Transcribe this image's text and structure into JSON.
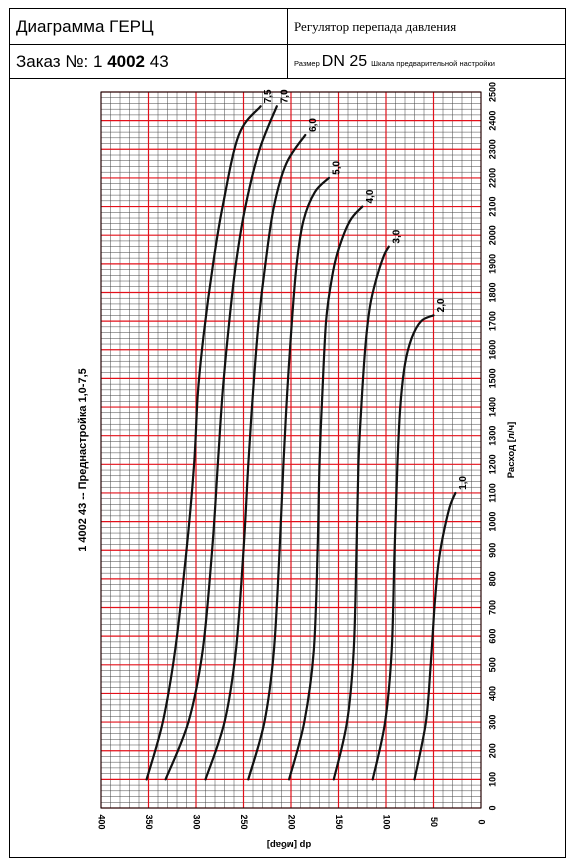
{
  "header": {
    "title": "Диаграмма ГЕРЦ",
    "regulator": "Регулятор перепада давления",
    "order_label": "Заказ №: 1 ",
    "order_bold": "4002",
    "order_tail": " 43",
    "size_label": "Размер",
    "size_value": "DN 25",
    "scale_label": "Шкала предварительной настройки"
  },
  "side_label": "1 4002 43  --  Преднастройка 1,0-7,5",
  "colors": {
    "grid_minor": "#444444",
    "grid_major": "#e3101a",
    "curve": "#111111"
  },
  "chart_data": {
    "type": "line",
    "xlabel": "dp [мбар]",
    "ylabel": "Расход [л/ч]",
    "xlim": [
      400,
      0
    ],
    "ylim": [
      0,
      2500
    ],
    "x_ticks": [
      "400",
      "350",
      "300",
      "250",
      "200",
      "150",
      "100",
      "50",
      "0"
    ],
    "y_ticks": [
      "0",
      "100",
      "200",
      "300",
      "400",
      "500",
      "600",
      "700",
      "800",
      "900",
      "1000",
      "1100",
      "1200",
      "1300",
      "1400",
      "1500",
      "1600",
      "1700",
      "1800",
      "1900",
      "2000",
      "2100",
      "2200",
      "2300",
      "2400",
      "2500"
    ],
    "grid": true,
    "series": [
      {
        "name": "7,5",
        "points": [
          [
            352,
            100
          ],
          [
            335,
            300
          ],
          [
            322,
            550
          ],
          [
            310,
            900
          ],
          [
            302,
            1200
          ],
          [
            298,
            1450
          ],
          [
            292,
            1650
          ],
          [
            282,
            1900
          ],
          [
            272,
            2100
          ],
          [
            255,
            2350
          ],
          [
            232,
            2450
          ]
        ]
      },
      {
        "name": "7,0",
        "points": [
          [
            332,
            100
          ],
          [
            308,
            300
          ],
          [
            293,
            550
          ],
          [
            283,
            900
          ],
          [
            277,
            1200
          ],
          [
            272,
            1450
          ],
          [
            265,
            1700
          ],
          [
            258,
            1900
          ],
          [
            248,
            2100
          ],
          [
            233,
            2300
          ],
          [
            215,
            2450
          ]
        ]
      },
      {
        "name": "6,0",
        "points": [
          [
            290,
            100
          ],
          [
            270,
            300
          ],
          [
            258,
            550
          ],
          [
            250,
            900
          ],
          [
            245,
            1200
          ],
          [
            240,
            1450
          ],
          [
            234,
            1700
          ],
          [
            227,
            1900
          ],
          [
            218,
            2100
          ],
          [
            205,
            2250
          ],
          [
            185,
            2350
          ]
        ]
      },
      {
        "name": "5,0",
        "points": [
          [
            245,
            100
          ],
          [
            228,
            300
          ],
          [
            218,
            550
          ],
          [
            212,
            900
          ],
          [
            208,
            1200
          ],
          [
            204,
            1450
          ],
          [
            199,
            1700
          ],
          [
            194,
            1900
          ],
          [
            187,
            2050
          ],
          [
            175,
            2150
          ],
          [
            160,
            2200
          ]
        ]
      },
      {
        "name": "4,0",
        "points": [
          [
            202,
            100
          ],
          [
            186,
            300
          ],
          [
            176,
            550
          ],
          [
            172,
            900
          ],
          [
            170,
            1200
          ],
          [
            167,
            1450
          ],
          [
            163,
            1700
          ],
          [
            157,
            1850
          ],
          [
            150,
            1950
          ],
          [
            138,
            2050
          ],
          [
            125,
            2100
          ]
        ]
      },
      {
        "name": "3,0",
        "points": [
          [
            155,
            100
          ],
          [
            141,
            300
          ],
          [
            134,
            550
          ],
          [
            131,
            900
          ],
          [
            129,
            1200
          ],
          [
            126,
            1400
          ],
          [
            122,
            1600
          ],
          [
            117,
            1750
          ],
          [
            110,
            1850
          ],
          [
            102,
            1930
          ],
          [
            97,
            1960
          ]
        ]
      },
      {
        "name": "2,0",
        "points": [
          [
            114,
            100
          ],
          [
            101,
            300
          ],
          [
            94,
            550
          ],
          [
            91,
            900
          ],
          [
            88,
            1200
          ],
          [
            85,
            1400
          ],
          [
            80,
            1550
          ],
          [
            73,
            1640
          ],
          [
            63,
            1700
          ],
          [
            50,
            1720
          ]
        ]
      },
      {
        "name": "1,0",
        "points": [
          [
            70,
            100
          ],
          [
            58,
            300
          ],
          [
            53,
            500
          ],
          [
            49,
            700
          ],
          [
            45,
            850
          ],
          [
            40,
            950
          ],
          [
            33,
            1050
          ],
          [
            27,
            1100
          ]
        ]
      }
    ]
  }
}
